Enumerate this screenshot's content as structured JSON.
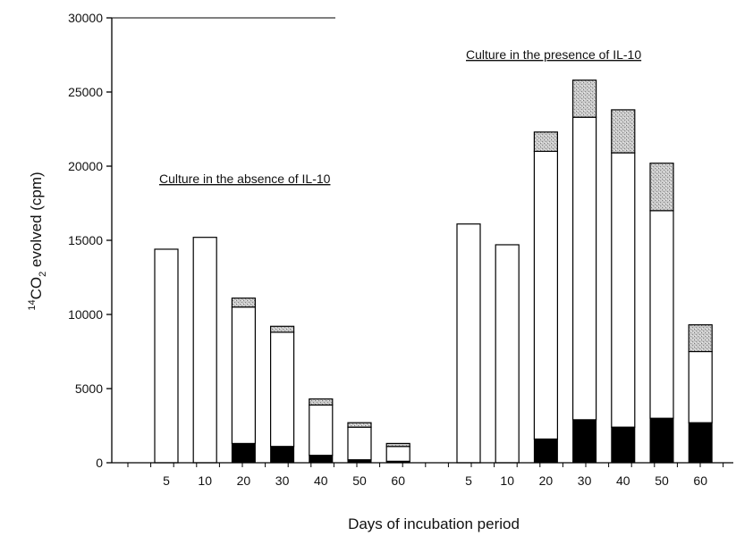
{
  "chart_data": {
    "type": "bar",
    "stacked": true,
    "xlabel": "Days of incubation period",
    "ylabel_prefix": "14",
    "ylabel_main_a": "CO",
    "ylabel_sub": "2",
    "ylabel_main_b": " evolved (cpm)",
    "ylim": [
      0,
      30000
    ],
    "yticks": [
      0,
      5000,
      10000,
      15000,
      20000,
      25000,
      30000
    ],
    "grid": false,
    "colors": {
      "bottom": "#000000",
      "middle": "#ffffff",
      "top": "#bbbbbb",
      "stroke": "#000000"
    },
    "groups": [
      {
        "annotation": "Culture in the absence of IL-10",
        "categories": [
          "5",
          "10",
          "20",
          "30",
          "40",
          "50",
          "60"
        ],
        "bottom": [
          0,
          0,
          1300,
          1100,
          500,
          200,
          100
        ],
        "middle": [
          14400,
          15200,
          9200,
          7700,
          3400,
          2200,
          1000
        ],
        "top": [
          0,
          0,
          600,
          400,
          400,
          300,
          200
        ]
      },
      {
        "annotation": "Culture in the presence of IL-10",
        "categories": [
          "5",
          "10",
          "20",
          "30",
          "40",
          "50",
          "60"
        ],
        "bottom": [
          0,
          0,
          1600,
          2900,
          2400,
          3000,
          2700
        ],
        "middle": [
          16100,
          14700,
          19400,
          20400,
          18500,
          14000,
          4800
        ],
        "top": [
          0,
          0,
          1300,
          2500,
          2900,
          3200,
          1800
        ]
      }
    ]
  }
}
